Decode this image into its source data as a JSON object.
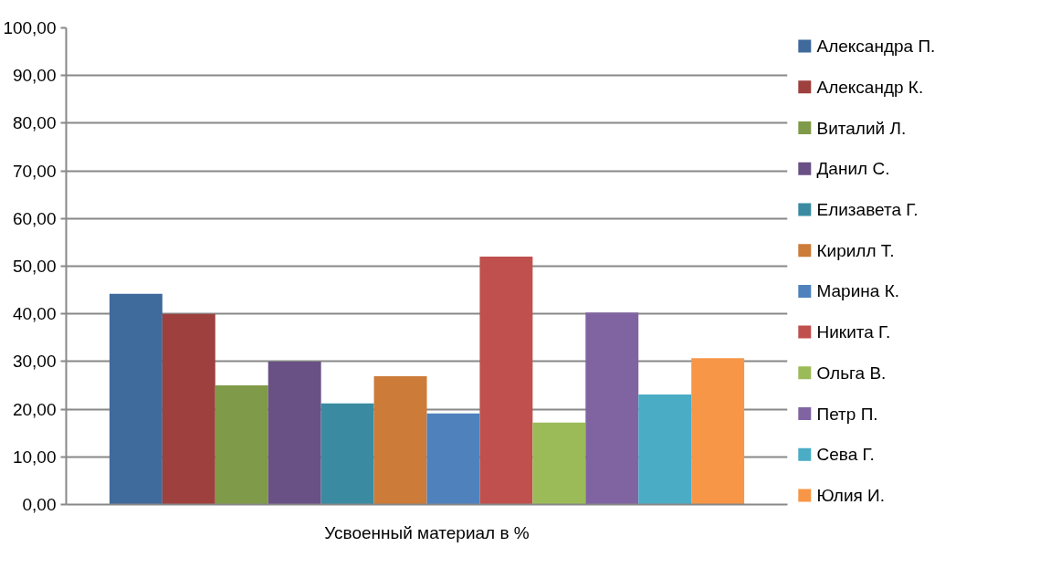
{
  "chart_data": {
    "type": "bar",
    "categories": [
      "Усвоенный материал в %"
    ],
    "series": [
      {
        "name": "Александра П.",
        "color": "#3f6a9c",
        "values": [
          44.2
        ]
      },
      {
        "name": "Александр К.",
        "color": "#9e403e",
        "values": [
          40.0
        ]
      },
      {
        "name": "Виталий Л.",
        "color": "#7f9a48",
        "values": [
          25.0
        ]
      },
      {
        "name": "Данил С.",
        "color": "#695085",
        "values": [
          30.0
        ]
      },
      {
        "name": "Елизавета Г.",
        "color": "#3a8ba2",
        "values": [
          21.2
        ]
      },
      {
        "name": "Кирилл Т.",
        "color": "#cc7b38",
        "values": [
          26.9
        ]
      },
      {
        "name": "Марина К.",
        "color": "#4f81bd",
        "values": [
          19.1
        ]
      },
      {
        "name": "Никита Г.",
        "color": "#c0504d",
        "values": [
          52.0
        ]
      },
      {
        "name": "Ольга В.",
        "color": "#9bbb59",
        "values": [
          17.2
        ]
      },
      {
        "name": "Петр П.",
        "color": "#8064a2",
        "values": [
          40.3
        ]
      },
      {
        "name": "Сева Г.",
        "color": "#4bacc6",
        "values": [
          23.1
        ]
      },
      {
        "name": "Юлия И.",
        "color": "#f79646",
        "values": [
          30.7
        ]
      }
    ],
    "ylim": [
      0,
      100
    ],
    "yticks": [
      {
        "value": 0,
        "label": "0,00"
      },
      {
        "value": 10,
        "label": "10,00"
      },
      {
        "value": 20,
        "label": "20,00"
      },
      {
        "value": 30,
        "label": "30,00"
      },
      {
        "value": 40,
        "label": "40,00"
      },
      {
        "value": 50,
        "label": "50,00"
      },
      {
        "value": 60,
        "label": "60,00"
      },
      {
        "value": 70,
        "label": "70,00"
      },
      {
        "value": 80,
        "label": "80,00"
      },
      {
        "value": 90,
        "label": "90,00"
      },
      {
        "value": 100,
        "label": "100,00"
      }
    ],
    "grid": "y",
    "legend": "right"
  }
}
